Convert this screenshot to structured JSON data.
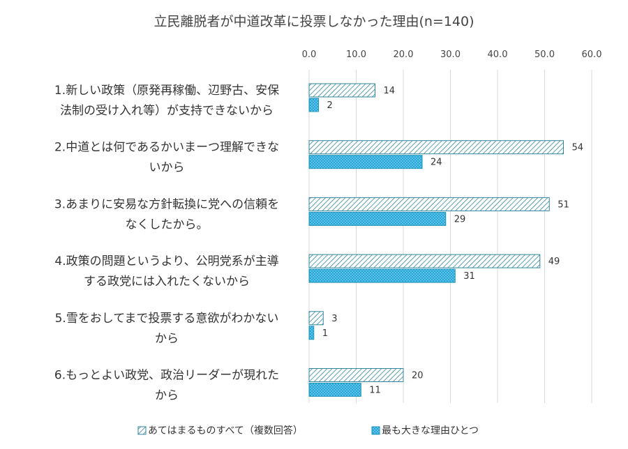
{
  "chart_data": {
    "type": "bar",
    "orientation": "horizontal",
    "title": "立民離脱者が中道改革に投票しなかった理由(n=140)",
    "xlim": [
      0,
      60
    ],
    "ticks": [
      "0.0",
      "10.0",
      "20.0",
      "30.0",
      "40.0",
      "50.0",
      "60.0"
    ],
    "tick_values": [
      0,
      10,
      20,
      30,
      40,
      50,
      60
    ],
    "grid": true,
    "legend_position": "bottom",
    "categories": [
      [
        "1.新しい政策（原発再稼働、辺野古、安保",
        "法制の受け入れ等）が支持できないから"
      ],
      [
        "2.中道とは何であるかいまーつ理解できな",
        "いから"
      ],
      [
        "3.あまりに安易な方針転換に党への信頼を",
        "なくしたから。"
      ],
      [
        "4.政策の問題というより、公明党系が主導",
        "する政党には入れたくないから"
      ],
      [
        "5.雪をおしてまで投票する意欲がわかない",
        "から"
      ],
      [
        "6.もっとよい政党、政治リーダーが現れた",
        "から"
      ]
    ],
    "series": [
      {
        "name": "あてはまるものすべて（複数回答）",
        "values": [
          14,
          54,
          51,
          49,
          3,
          20
        ],
        "pattern": "diagonal",
        "color": "#31859c",
        "fill": "#ffffff"
      },
      {
        "name": "最も大きな理由ひとつ",
        "values": [
          2,
          24,
          29,
          31,
          1,
          11
        ],
        "pattern": "dots",
        "color": "#1f94b8",
        "fill": "#22a7d8"
      }
    ],
    "data_labels": [
      [
        "14",
        "54",
        "51",
        "49",
        "3",
        "20"
      ],
      [
        "2",
        "24",
        "29",
        "31",
        "1",
        "11"
      ]
    ]
  }
}
